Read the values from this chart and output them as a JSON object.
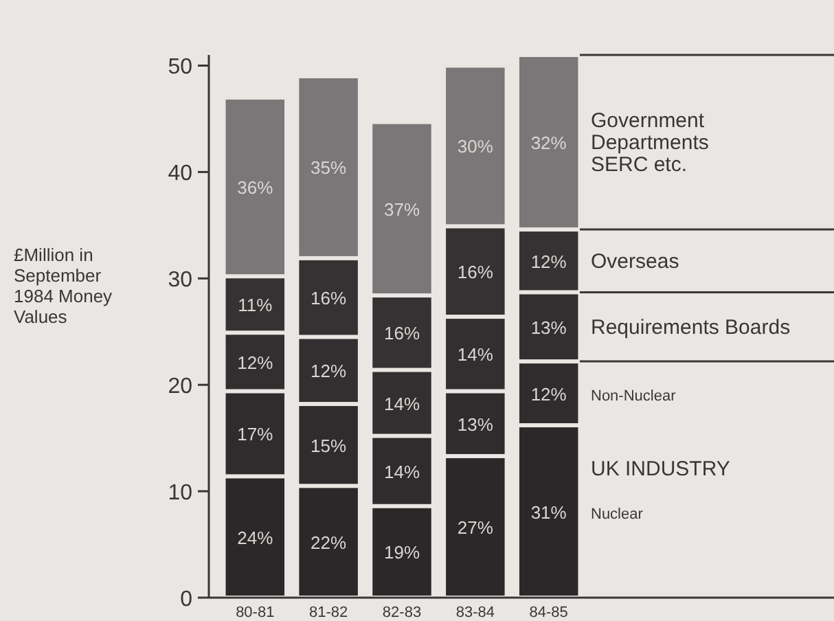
{
  "chart_data": {
    "type": "bar",
    "stacked": true,
    "legend": "right",
    "grid": false,
    "ylabel": "£Million in September 1984 Money Values",
    "categories": [
      "80-81",
      "81-82",
      "82-83",
      "83-84",
      "84-85"
    ],
    "ylim": [
      0,
      51
    ],
    "yticks": [
      0,
      10,
      20,
      30,
      40,
      50
    ],
    "annotations": [
      "UK INDUSTRY",
      "24%",
      "22%",
      "19%",
      "27%",
      "31%",
      "17%",
      "15%",
      "14%",
      "13%",
      "12%",
      "12%",
      "12%",
      "14%",
      "14%",
      "13%",
      "11%",
      "16%",
      "16%",
      "16%",
      "12%",
      "36%",
      "35%",
      "37%",
      "30%",
      "32%"
    ],
    "series": [
      {
        "name": "Nuclear",
        "color": "#2b2829",
        "values": [
          11.4,
          10.5,
          8.6,
          13.3,
          16.2
        ]
      },
      {
        "name": "Non-Nuclear",
        "color": "#2f2c2d",
        "values": [
          8.0,
          7.7,
          6.6,
          6.1,
          6.0
        ]
      },
      {
        "name": "Requirements Boards",
        "color": "#322f30",
        "values": [
          5.5,
          6.3,
          6.2,
          7.0,
          6.5
        ]
      },
      {
        "name": "Overseas",
        "color": "#363233",
        "values": [
          5.3,
          7.4,
          7.0,
          8.5,
          5.9
        ]
      },
      {
        "name": "Government Departments SERC etc.",
        "color": "#7a7778",
        "values": [
          16.8,
          17.1,
          16.3,
          15.1,
          16.4
        ]
      }
    ]
  }
}
